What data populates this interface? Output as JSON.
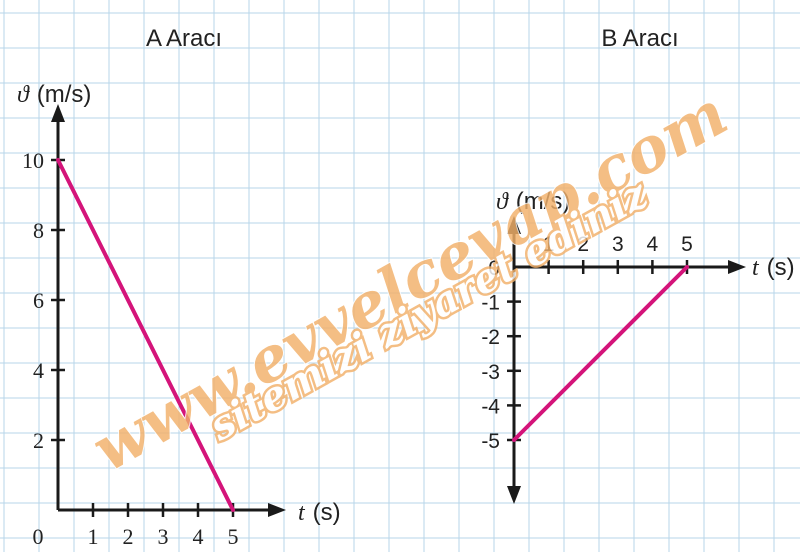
{
  "colors": {
    "grid": "#b7d6ea",
    "axis": "#1a1a1a",
    "line": "#d4147a",
    "watermark": "#f2b06a"
  },
  "watermark": {
    "line1": "www.evvelcevap.com",
    "line2": "sitemizi ziyaret ediniz"
  },
  "chart_data": [
    {
      "type": "line",
      "title": "A Aracı",
      "ylabel_symbol": "ϑ",
      "ylabel_unit": "(m/s)",
      "xlabel_symbol": "t",
      "xlabel_unit": "(s)",
      "origin_label": "0",
      "x_ticks": [
        "1",
        "2",
        "3",
        "4",
        "5"
      ],
      "y_ticks": [
        "2",
        "4",
        "6",
        "8",
        "10"
      ],
      "xlim": [
        0,
        6.5
      ],
      "ylim": [
        0,
        12
      ],
      "series": [
        {
          "x": [
            0,
            5
          ],
          "y": [
            10,
            0
          ]
        }
      ]
    },
    {
      "type": "line",
      "title": "B Aracı",
      "ylabel_symbol": "ϑ",
      "ylabel_unit": "(m/s)",
      "xlabel_symbol": "t",
      "xlabel_unit": "(s)",
      "x_ticks": [
        "1",
        "2",
        "3",
        "4",
        "5"
      ],
      "y_ticks": [
        "0",
        "-1",
        "-2",
        "-3",
        "-4",
        "-5"
      ],
      "xlim": [
        0,
        6.5
      ],
      "ylim": [
        -7,
        1
      ],
      "series": [
        {
          "x": [
            0,
            5
          ],
          "y": [
            -5,
            0
          ]
        }
      ]
    }
  ]
}
